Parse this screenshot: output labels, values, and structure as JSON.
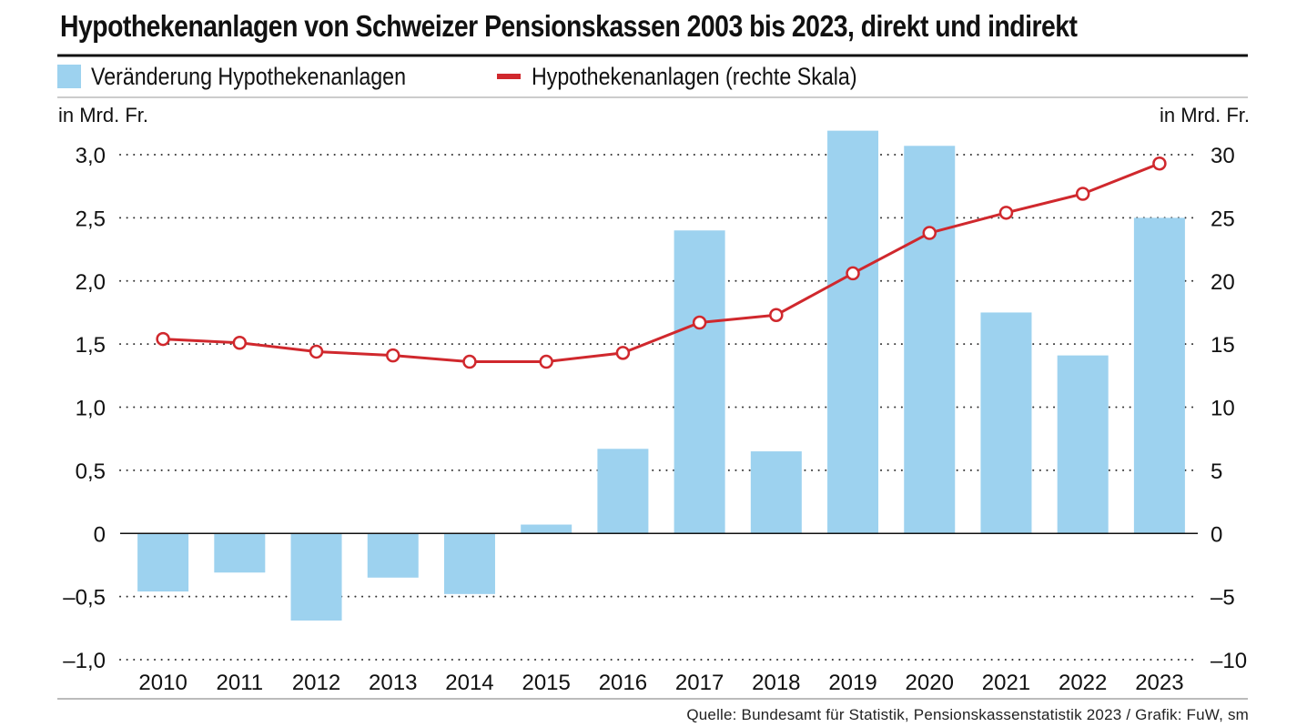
{
  "chart_data": {
    "type": "bar+line",
    "title": "Hypothekenanlagen von Schweizer Pensionskassen 2003 bis 2023, direkt und indirekt",
    "categories": [
      "2010",
      "2011",
      "2012",
      "2013",
      "2014",
      "2015",
      "2016",
      "2017",
      "2018",
      "2019",
      "2020",
      "2021",
      "2022",
      "2023"
    ],
    "series": [
      {
        "name": "Veränderung Hypothekenanlagen",
        "type": "bar",
        "axis": "left",
        "color": "#9dd2ef",
        "values": [
          -0.46,
          -0.31,
          -0.69,
          -0.35,
          -0.48,
          0.07,
          0.67,
          2.4,
          0.65,
          3.19,
          3.07,
          1.75,
          1.41,
          2.5
        ]
      },
      {
        "name": "Hypothekenanlagen (rechte Skala)",
        "type": "line",
        "axis": "right",
        "color": "#d0282d",
        "values": [
          15.4,
          15.1,
          14.4,
          14.1,
          13.6,
          13.6,
          14.3,
          16.7,
          17.3,
          20.6,
          23.8,
          25.4,
          26.9,
          29.3
        ]
      }
    ],
    "y_left": {
      "label": "in Mrd. Fr.",
      "range": [
        -1.0,
        3.0
      ],
      "ticks": [
        3.0,
        2.5,
        2.0,
        1.5,
        1.0,
        0.5,
        0,
        -0.5,
        -1.0
      ],
      "tick_labels": [
        "3,0",
        "2,5",
        "2,0",
        "1,5",
        "1,0",
        "0,5",
        "0",
        "–0,5",
        "–1,0"
      ]
    },
    "y_right": {
      "label": "in Mrd. Fr.",
      "range": [
        -10,
        30
      ],
      "ticks": [
        30,
        25,
        20,
        15,
        10,
        5,
        0,
        -5,
        -10
      ],
      "tick_labels": [
        "30",
        "25",
        "20",
        "15",
        "10",
        "5",
        "0",
        "–5",
        "–10"
      ]
    },
    "grid": true,
    "legend_position": "top"
  },
  "legend": {
    "bar_label": "Veränderung Hypothekenanlagen",
    "line_label": "Hypothekenanlagen (rechte Skala)"
  },
  "source": "Quelle: Bundesamt für Statistik, Pensionskassenstatistik 2023 / Grafik: FuW, sm"
}
